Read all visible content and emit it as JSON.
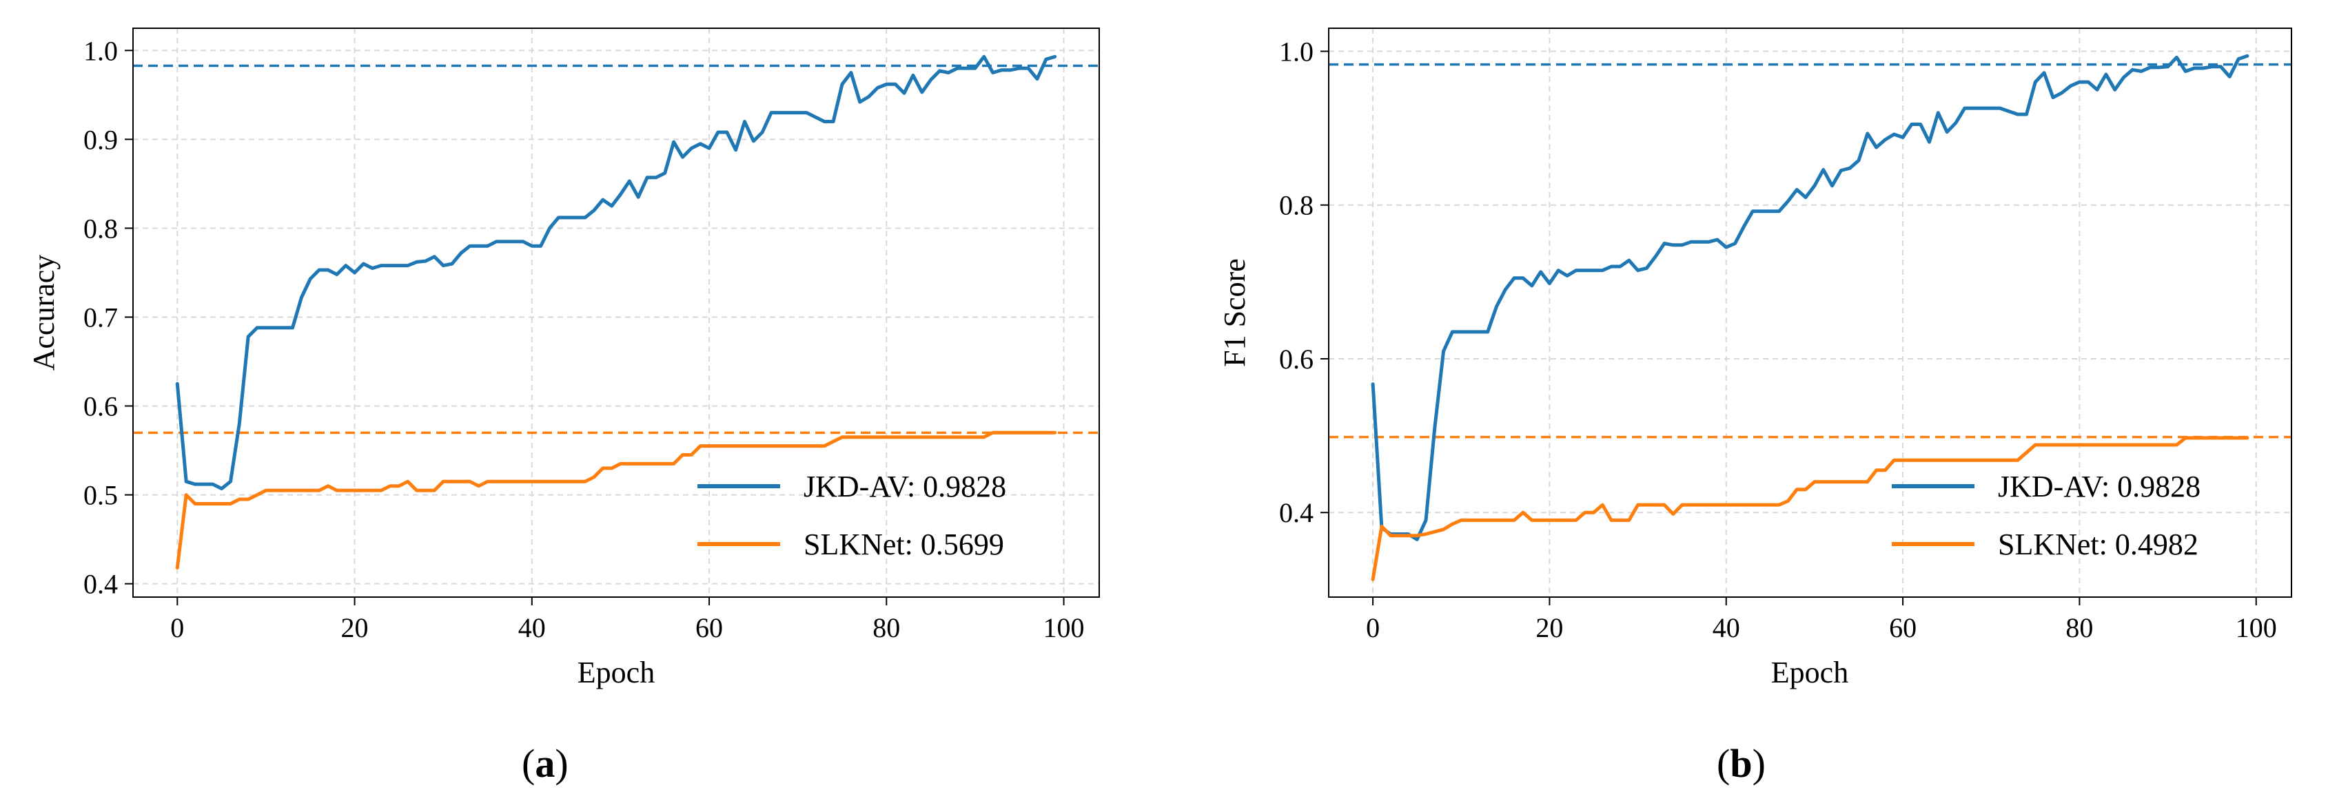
{
  "colors": {
    "series1": "#1f77b4",
    "series2": "#ff7f0e",
    "grid": "#d9d9d9"
  },
  "chart_data": [
    {
      "panel_label": "(a)",
      "panel_letter": "a",
      "type": "line",
      "xlabel": "Epoch",
      "ylabel": "Accuracy",
      "xlim": [
        -5,
        104
      ],
      "ylim": [
        0.385,
        1.025
      ],
      "xticks": [
        0,
        20,
        40,
        60,
        80,
        100
      ],
      "yticks": [
        0.4,
        0.5,
        0.6,
        0.7,
        0.8,
        0.9,
        1.0
      ],
      "ytick_labels": [
        "0.4",
        "0.5",
        "0.6",
        "0.7",
        "0.8",
        "0.9",
        "1.0"
      ],
      "hlines": [
        0.9828,
        0.5699
      ],
      "legend": [
        "JKD-AV: 0.9828",
        "SLKNet: 0.5699"
      ],
      "series": [
        {
          "name": "JKD-AV",
          "values": [
            0.625,
            0.515,
            0.512,
            0.512,
            0.512,
            0.507,
            0.515,
            0.58,
            0.678,
            0.688,
            0.688,
            0.688,
            0.688,
            0.688,
            0.722,
            0.743,
            0.753,
            0.753,
            0.748,
            0.758,
            0.75,
            0.76,
            0.755,
            0.758,
            0.758,
            0.758,
            0.758,
            0.762,
            0.763,
            0.768,
            0.758,
            0.76,
            0.772,
            0.78,
            0.78,
            0.78,
            0.785,
            0.785,
            0.785,
            0.785,
            0.78,
            0.78,
            0.8,
            0.812,
            0.812,
            0.812,
            0.812,
            0.82,
            0.832,
            0.825,
            0.838,
            0.853,
            0.835,
            0.857,
            0.857,
            0.862,
            0.897,
            0.88,
            0.89,
            0.895,
            0.89,
            0.908,
            0.908,
            0.888,
            0.92,
            0.898,
            0.908,
            0.93,
            0.93,
            0.93,
            0.93,
            0.93,
            0.925,
            0.92,
            0.92,
            0.962,
            0.975,
            0.942,
            0.948,
            0.958,
            0.962,
            0.962,
            0.952,
            0.972,
            0.953,
            0.967,
            0.977,
            0.975,
            0.98,
            0.98,
            0.98,
            0.993,
            0.975,
            0.978,
            0.978,
            0.98,
            0.98,
            0.968,
            0.99,
            0.993
          ]
        },
        {
          "name": "SLKNet",
          "values": [
            0.418,
            0.5,
            0.49,
            0.49,
            0.49,
            0.49,
            0.49,
            0.495,
            0.495,
            0.5,
            0.505,
            0.505,
            0.505,
            0.505,
            0.505,
            0.505,
            0.505,
            0.51,
            0.505,
            0.505,
            0.505,
            0.505,
            0.505,
            0.505,
            0.51,
            0.51,
            0.515,
            0.505,
            0.505,
            0.505,
            0.515,
            0.515,
            0.515,
            0.515,
            0.51,
            0.515,
            0.515,
            0.515,
            0.515,
            0.515,
            0.515,
            0.515,
            0.515,
            0.515,
            0.515,
            0.515,
            0.515,
            0.52,
            0.53,
            0.53,
            0.535,
            0.535,
            0.535,
            0.535,
            0.535,
            0.535,
            0.535,
            0.545,
            0.545,
            0.555,
            0.555,
            0.555,
            0.555,
            0.555,
            0.555,
            0.555,
            0.555,
            0.555,
            0.555,
            0.555,
            0.555,
            0.555,
            0.555,
            0.555,
            0.56,
            0.565,
            0.565,
            0.565,
            0.565,
            0.565,
            0.565,
            0.565,
            0.565,
            0.565,
            0.565,
            0.565,
            0.565,
            0.565,
            0.565,
            0.565,
            0.565,
            0.565,
            0.57,
            0.57,
            0.57,
            0.57,
            0.57,
            0.57,
            0.57,
            0.57
          ]
        }
      ]
    },
    {
      "panel_label": "(b)",
      "panel_letter": "b",
      "type": "line",
      "xlabel": "Epoch",
      "ylabel": "F1 Score",
      "xlim": [
        -5,
        104
      ],
      "ylim": [
        0.29,
        1.03
      ],
      "xticks": [
        0,
        20,
        40,
        60,
        80,
        100
      ],
      "yticks": [
        0.4,
        0.6,
        0.8,
        1.0
      ],
      "ytick_labels": [
        "0.4",
        "0.6",
        "0.8",
        "1.0"
      ],
      "hlines": [
        0.9828,
        0.4982
      ],
      "legend": [
        "JKD-AV: 0.9828",
        "SLKNet: 0.4982"
      ],
      "series": [
        {
          "name": "JKD-AV",
          "values": [
            0.567,
            0.38,
            0.372,
            0.372,
            0.372,
            0.365,
            0.39,
            0.51,
            0.61,
            0.635,
            0.635,
            0.635,
            0.635,
            0.635,
            0.668,
            0.69,
            0.705,
            0.705,
            0.695,
            0.713,
            0.698,
            0.715,
            0.708,
            0.715,
            0.715,
            0.715,
            0.715,
            0.72,
            0.72,
            0.728,
            0.715,
            0.718,
            0.733,
            0.75,
            0.748,
            0.748,
            0.752,
            0.752,
            0.752,
            0.755,
            0.745,
            0.75,
            0.772,
            0.792,
            0.792,
            0.792,
            0.792,
            0.805,
            0.82,
            0.81,
            0.825,
            0.846,
            0.825,
            0.845,
            0.848,
            0.858,
            0.893,
            0.875,
            0.885,
            0.892,
            0.888,
            0.905,
            0.905,
            0.882,
            0.92,
            0.895,
            0.907,
            0.926,
            0.926,
            0.926,
            0.926,
            0.926,
            0.922,
            0.918,
            0.918,
            0.96,
            0.972,
            0.94,
            0.946,
            0.955,
            0.96,
            0.96,
            0.95,
            0.97,
            0.95,
            0.966,
            0.976,
            0.974,
            0.979,
            0.979,
            0.98,
            0.992,
            0.974,
            0.978,
            0.978,
            0.98,
            0.98,
            0.967,
            0.99,
            0.994
          ]
        },
        {
          "name": "SLKNet",
          "values": [
            0.313,
            0.382,
            0.37,
            0.37,
            0.37,
            0.37,
            0.372,
            0.375,
            0.378,
            0.385,
            0.39,
            0.39,
            0.39,
            0.39,
            0.39,
            0.39,
            0.39,
            0.4,
            0.39,
            0.39,
            0.39,
            0.39,
            0.39,
            0.39,
            0.4,
            0.4,
            0.41,
            0.39,
            0.39,
            0.39,
            0.41,
            0.41,
            0.41,
            0.41,
            0.398,
            0.41,
            0.41,
            0.41,
            0.41,
            0.41,
            0.41,
            0.41,
            0.41,
            0.41,
            0.41,
            0.41,
            0.41,
            0.415,
            0.43,
            0.43,
            0.44,
            0.44,
            0.44,
            0.44,
            0.44,
            0.44,
            0.44,
            0.455,
            0.455,
            0.468,
            0.468,
            0.468,
            0.468,
            0.468,
            0.468,
            0.468,
            0.468,
            0.468,
            0.468,
            0.468,
            0.468,
            0.468,
            0.468,
            0.468,
            0.478,
            0.488,
            0.488,
            0.488,
            0.488,
            0.488,
            0.488,
            0.488,
            0.488,
            0.488,
            0.488,
            0.488,
            0.488,
            0.488,
            0.488,
            0.488,
            0.488,
            0.488,
            0.497,
            0.497,
            0.497,
            0.497,
            0.497,
            0.497,
            0.497,
            0.497
          ]
        }
      ]
    }
  ]
}
